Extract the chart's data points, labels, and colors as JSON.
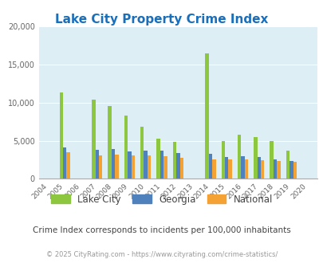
{
  "title": "Lake City Property Crime Index",
  "subtitle": "Crime Index corresponds to incidents per 100,000 inhabitants",
  "footer": "© 2025 CityRating.com - https://www.cityrating.com/crime-statistics/",
  "years": [
    "2004",
    "2005",
    "2006",
    "2007",
    "2008",
    "2009",
    "2010",
    "2011",
    "2012",
    "2013",
    "2014",
    "2015",
    "2016",
    "2017",
    "2018",
    "2019",
    "2020"
  ],
  "lake_city": [
    0,
    11300,
    0,
    10400,
    9500,
    8300,
    6800,
    5250,
    4800,
    0,
    16400,
    5000,
    5800,
    5500,
    5000,
    3700,
    0
  ],
  "georgia": [
    0,
    4100,
    0,
    3850,
    3950,
    3550,
    3650,
    3650,
    3350,
    0,
    3250,
    2900,
    2950,
    2850,
    2550,
    2300,
    0
  ],
  "national": [
    0,
    3500,
    0,
    3100,
    3200,
    3100,
    3050,
    2950,
    2800,
    0,
    2600,
    2550,
    2500,
    2450,
    2300,
    2200,
    0
  ],
  "lake_city_color": "#8dc63f",
  "georgia_color": "#4f81bd",
  "national_color": "#f4a233",
  "bg_color": "#ddeef5",
  "ylim": [
    0,
    20000
  ],
  "yticks": [
    0,
    5000,
    10000,
    15000,
    20000
  ],
  "title_color": "#1a6fbb",
  "subtitle_color": "#444444",
  "footer_color": "#999999",
  "bar_width": 0.22
}
